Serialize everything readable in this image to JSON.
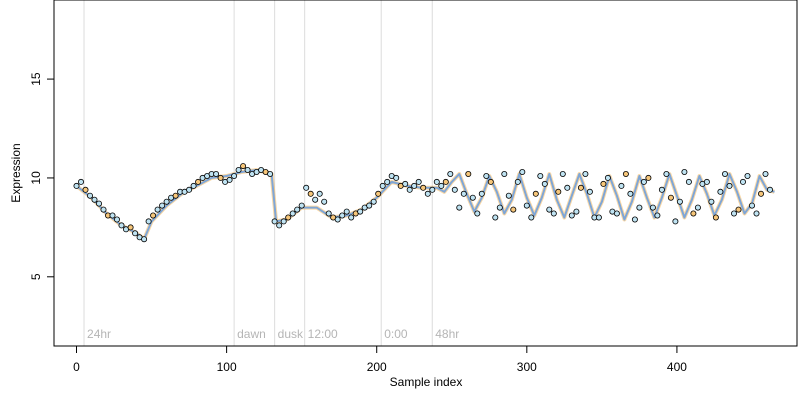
{
  "chart_data": {
    "type": "scatter",
    "title": "",
    "xlabel": "Sample index",
    "ylabel": "Expression",
    "xlim": [
      -15,
      480
    ],
    "ylim": [
      1.5,
      19
    ],
    "xticks": [
      0,
      100,
      200,
      300,
      400
    ],
    "yticks": [
      5,
      10,
      15
    ],
    "grid": false,
    "legend": "none",
    "vertical_markers": [
      {
        "x": 5,
        "label": "24hr"
      },
      {
        "x": 105,
        "label": "dawn"
      },
      {
        "x": 132,
        "label": "dusk"
      },
      {
        "x": 152,
        "label": "12:00"
      },
      {
        "x": 203,
        "label": "0:00"
      },
      {
        "x": 237,
        "label": "48hr"
      }
    ],
    "colors": {
      "point_fill": "#bfe3f2",
      "point_fill_alt": "#f6c67a",
      "point_stroke": "#000000",
      "fit_line": "#7fa6d6",
      "fit_band": "#f2a93b",
      "marker_line": "#dcdcdc",
      "marker_label": "#b5b5b5"
    },
    "series": [
      {
        "type": "scatter",
        "x": [
          0,
          3,
          6,
          9,
          12,
          15,
          18,
          21,
          24,
          27,
          30,
          33,
          36,
          39,
          42,
          45,
          48,
          51,
          54,
          57,
          60,
          63,
          66,
          69,
          72,
          75,
          78,
          81,
          84,
          87,
          90,
          93,
          96,
          99,
          102,
          105,
          108,
          111,
          114,
          117,
          120,
          123,
          126,
          129,
          132,
          135,
          138,
          141,
          144,
          147,
          150,
          153,
          156,
          159,
          162,
          165,
          168,
          171,
          174,
          177,
          180,
          183,
          186,
          189,
          192,
          195,
          198,
          201,
          204,
          207,
          210,
          213,
          216,
          219,
          222,
          225,
          228,
          231,
          234,
          237,
          240,
          243,
          246,
          249,
          252,
          255,
          258,
          261,
          264,
          267,
          270,
          273,
          276,
          279,
          282,
          285,
          288,
          291,
          294,
          297,
          300,
          303,
          306,
          309,
          312,
          315,
          318,
          321,
          324,
          327,
          330,
          333,
          336,
          339,
          342,
          345,
          348,
          351,
          354,
          357,
          360,
          363,
          366,
          369,
          372,
          375,
          378,
          381,
          384,
          387,
          390,
          393,
          396,
          399,
          402,
          405,
          408,
          411,
          414,
          417,
          420,
          423,
          426,
          429,
          432,
          435,
          438,
          441,
          444,
          447,
          450,
          453,
          456,
          459,
          462
        ],
        "y": [
          9.6,
          9.8,
          9.4,
          9.1,
          8.9,
          8.7,
          8.4,
          8.1,
          8.1,
          7.9,
          7.6,
          7.4,
          7.5,
          7.2,
          7.0,
          6.9,
          7.8,
          8.1,
          8.4,
          8.6,
          8.8,
          9.0,
          9.1,
          9.3,
          9.3,
          9.4,
          9.6,
          9.8,
          10.0,
          10.1,
          10.2,
          10.2,
          10.0,
          9.8,
          9.9,
          10.1,
          10.4,
          10.6,
          10.4,
          10.2,
          10.3,
          10.4,
          10.3,
          10.2,
          7.8,
          7.6,
          7.8,
          8.0,
          8.2,
          8.4,
          8.6,
          9.5,
          9.2,
          8.9,
          9.2,
          8.8,
          8.2,
          8.0,
          7.9,
          8.1,
          8.3,
          8.0,
          8.2,
          8.3,
          8.5,
          8.6,
          8.8,
          9.2,
          9.6,
          9.8,
          10.1,
          10.0,
          9.6,
          9.7,
          9.4,
          9.6,
          9.8,
          9.5,
          9.2,
          9.4,
          9.8,
          9.6,
          9.8,
          10.2,
          9.4,
          8.5,
          9.2,
          10.2,
          9.0,
          8.2,
          9.2,
          10.1,
          9.8,
          8.0,
          8.5,
          10.2,
          9.1,
          8.4,
          9.8,
          10.3,
          8.6,
          8.0,
          9.2,
          10.1,
          9.7,
          8.4,
          8.2,
          9.3,
          10.2,
          9.5,
          8.1,
          8.3,
          9.5,
          10.2,
          9.3,
          8.0,
          8.0,
          9.7,
          10.0,
          8.3,
          8.2,
          9.6,
          10.2,
          9.2,
          7.9,
          8.5,
          9.8,
          10.0,
          8.5,
          8.1,
          9.4,
          10.2,
          9.0,
          7.8,
          8.8,
          10.3,
          9.8,
          8.2,
          8.5,
          9.7,
          9.8,
          8.8,
          8.0,
          9.3,
          10.2,
          9.6,
          8.2,
          8.4,
          9.8,
          10.1,
          8.6,
          8.2,
          9.2,
          10.2,
          9.4
        ]
      }
    ],
    "fit": {
      "x": [
        0,
        10,
        20,
        30,
        40,
        45,
        50,
        60,
        70,
        80,
        90,
        100,
        110,
        120,
        130,
        133,
        140,
        150,
        160,
        170,
        180,
        190,
        200,
        210,
        220,
        230,
        240,
        245,
        250,
        255,
        260,
        265,
        270,
        275,
        280,
        285,
        290,
        295,
        300,
        305,
        310,
        315,
        320,
        325,
        330,
        335,
        340,
        345,
        350,
        355,
        360,
        365,
        370,
        375,
        380,
        385,
        390,
        395,
        400,
        405,
        410,
        415,
        420,
        425,
        430,
        435,
        440,
        445,
        450,
        455,
        460,
        465
      ],
      "y": [
        9.6,
        9.0,
        8.2,
        7.6,
        7.2,
        6.9,
        7.8,
        8.6,
        9.2,
        9.6,
        10.0,
        10.1,
        10.3,
        10.4,
        10.2,
        7.8,
        7.9,
        8.5,
        8.5,
        8.0,
        8.1,
        8.4,
        9.0,
        9.8,
        9.6,
        9.5,
        9.5,
        9.3,
        9.8,
        10.2,
        9.2,
        8.3,
        9.0,
        10.1,
        9.3,
        8.2,
        8.9,
        10.2,
        9.0,
        8.1,
        9.0,
        10.2,
        8.9,
        8.0,
        9.1,
        10.2,
        9.2,
        8.0,
        8.8,
        10.1,
        9.1,
        7.9,
        8.8,
        10.1,
        9.0,
        8.0,
        9.0,
        10.2,
        9.1,
        8.0,
        8.9,
        10.1,
        9.2,
        8.1,
        8.9,
        10.2,
        9.3,
        8.2,
        8.7,
        10.1,
        9.4,
        9.3
      ]
    }
  }
}
